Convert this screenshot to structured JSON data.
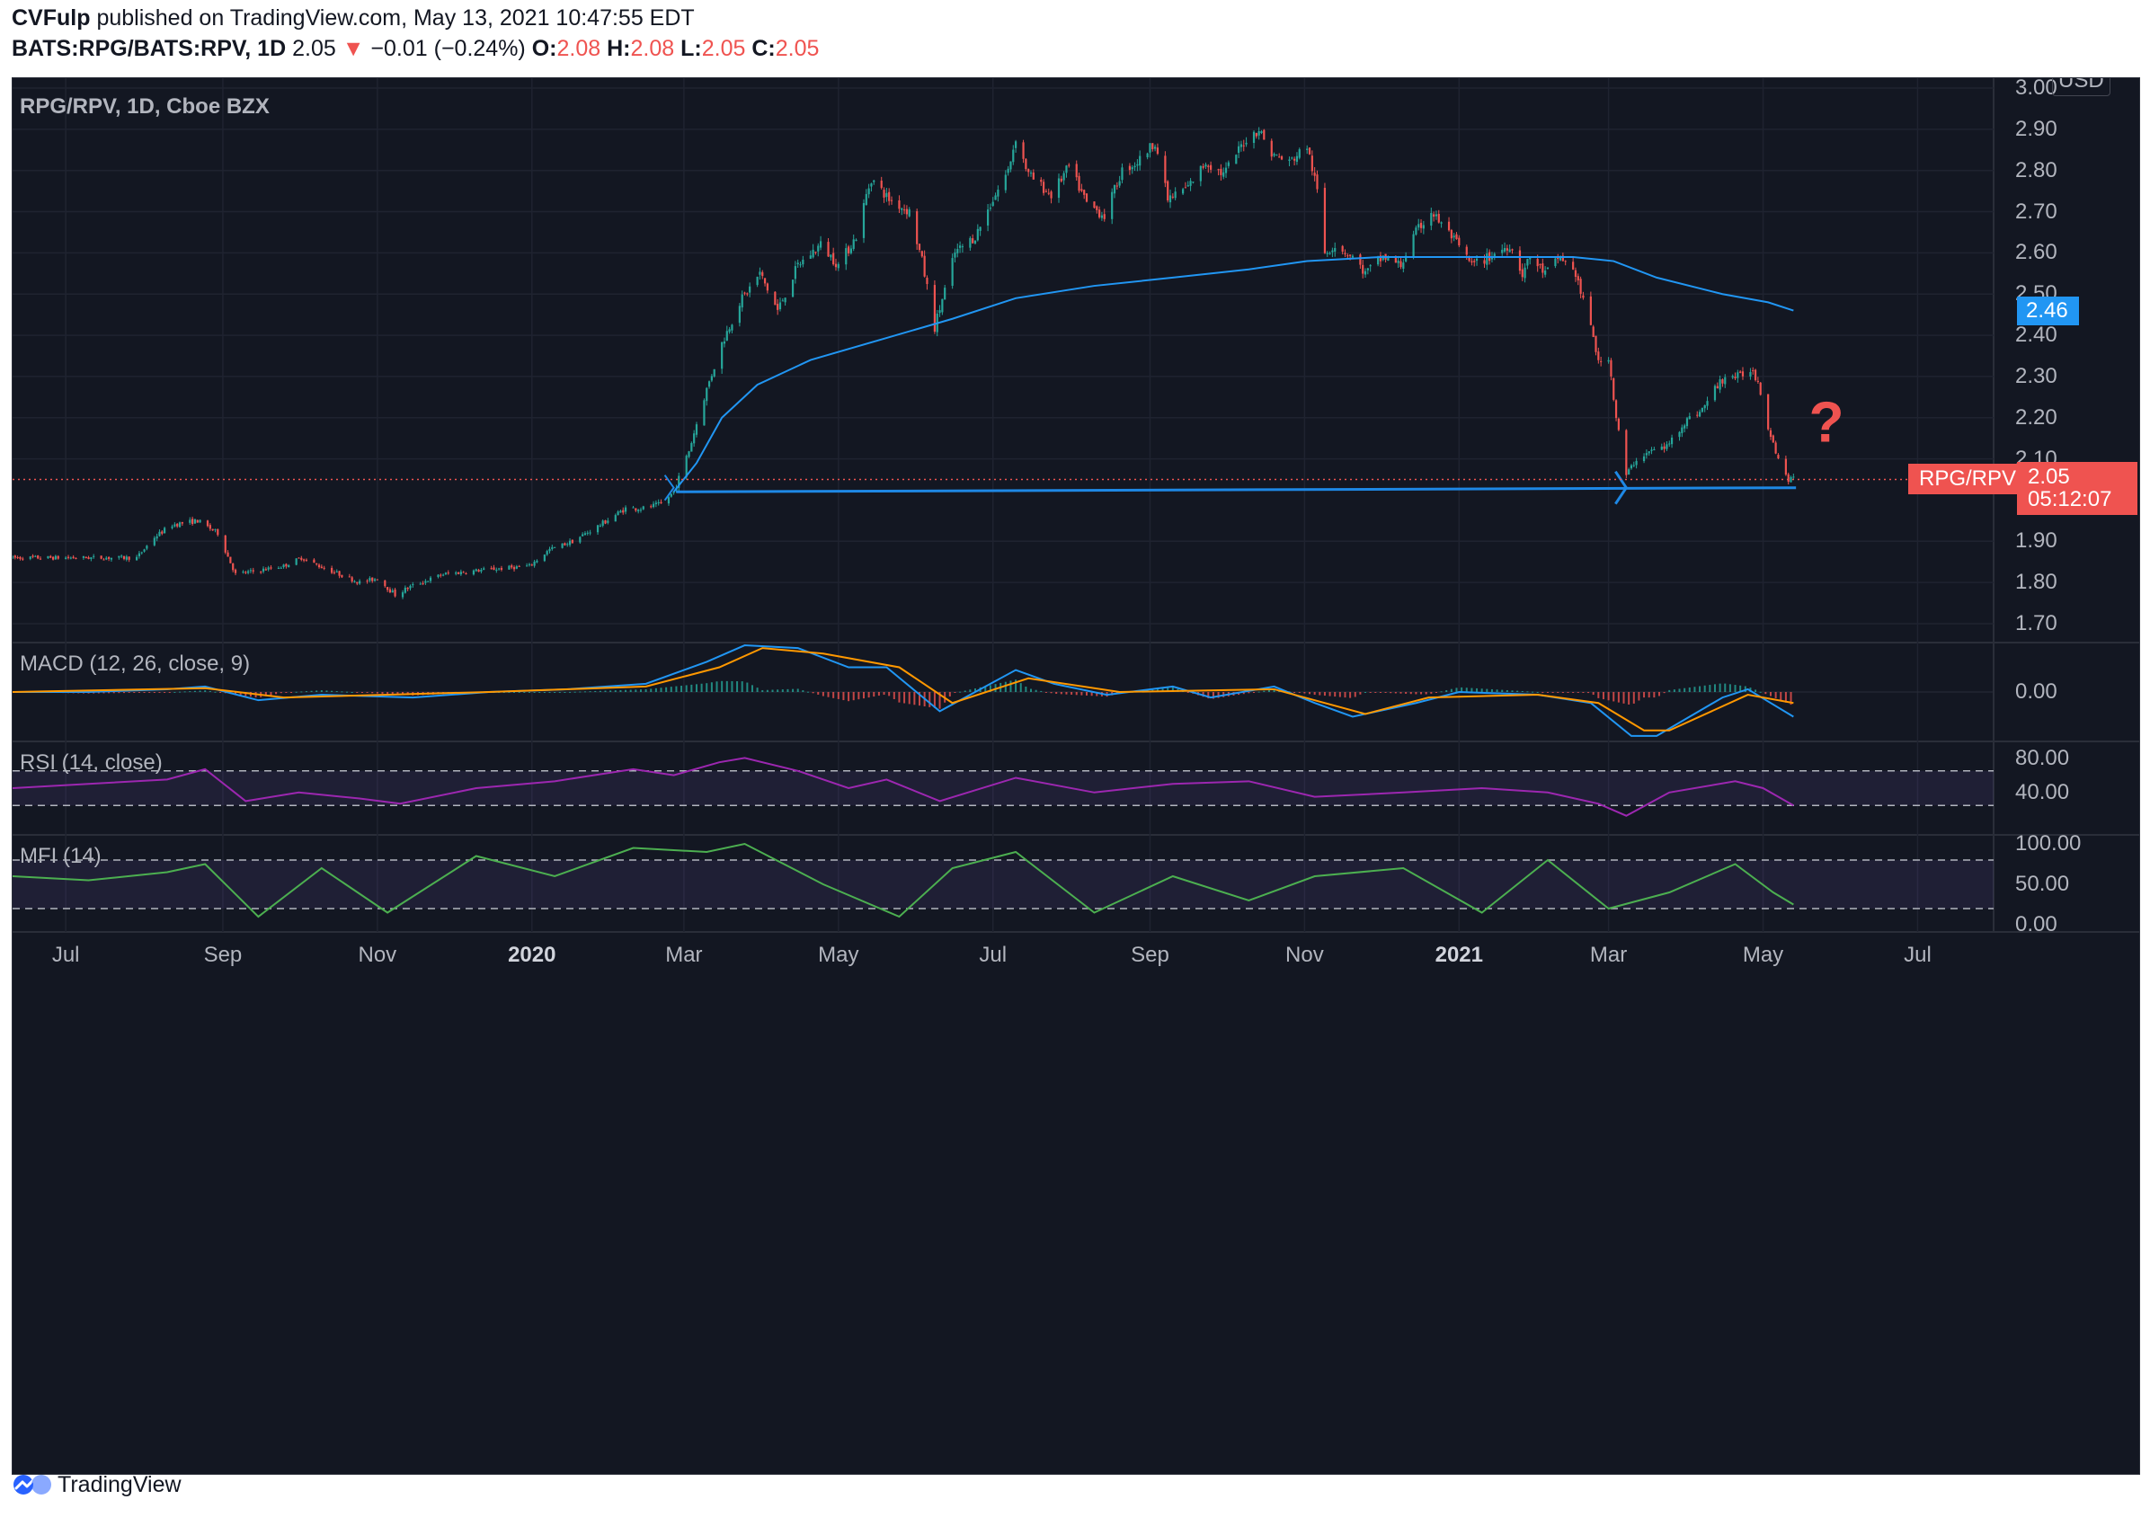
{
  "header": {
    "author": "CVFulp",
    "published_text": " published on TradingView.com, May 13, 2021 10:47:55 EDT",
    "symbol_line": "BATS:RPG/BATS:RPV, 1D",
    "last": "2.05",
    "change_arrow": "▼",
    "change": "−0.01 (−0.24%)",
    "o_label": "O:",
    "o_value": "2.08",
    "h_label": "H:",
    "h_value": "2.08",
    "l_label": "L:",
    "l_value": "2.05",
    "c_label": "C:",
    "c_value": "2.05"
  },
  "pane_titles": {
    "main": "RPG/RPV, 1D, Cboe BZX",
    "macd": "MACD (12, 26, close, 9)",
    "rsi": "RSI (14, close)",
    "mfi": "MFI (14)"
  },
  "currency_badge": "USD",
  "price_axis": [
    "3.00",
    "2.90",
    "2.80",
    "2.70",
    "2.60",
    "2.50",
    "2.40",
    "2.30",
    "2.20",
    "2.10",
    "1.90",
    "1.80",
    "1.70"
  ],
  "price_tags": {
    "ma_value": "2.46",
    "symbol_tag": "RPG/RPV",
    "last_value": "2.05",
    "countdown": "05:12:07"
  },
  "macd_axis": [
    "0.00"
  ],
  "rsi_axis": [
    "80.00",
    "40.00"
  ],
  "mfi_axis": [
    "100.00",
    "50.00",
    "0.00"
  ],
  "time_axis": [
    "Jul",
    "Sep",
    "Nov",
    "2020",
    "Mar",
    "May",
    "Jul",
    "Sep",
    "Nov",
    "2021",
    "Mar",
    "May",
    "Jul"
  ],
  "annotation_mark": "?",
  "footer": {
    "brand": "TradingView"
  },
  "colors": {
    "up": "#26a69a",
    "down": "#ef5350",
    "ma": "#2196f3",
    "trendline": "#1e88e5",
    "macd_line": "#2196f3",
    "signal_line": "#ff9800",
    "rsi": "#9c27b0",
    "mfi": "#4caf50",
    "background": "#131722"
  },
  "chart_data": [
    {
      "type": "candlestick",
      "title": "RPG/RPV, 1D, Cboe BZX",
      "ylim": [
        1.65,
        3.02
      ],
      "x_range": [
        "2019-06-10",
        "2021-07-31"
      ],
      "anchors": [
        [
          "2019-06-10",
          1.86
        ],
        [
          "2019-06-28",
          1.86
        ],
        [
          "2019-07-12",
          1.86
        ],
        [
          "2019-07-29",
          1.86
        ],
        [
          "2019-08-05",
          1.91
        ],
        [
          "2019-08-12",
          1.94
        ],
        [
          "2019-08-22",
          1.95
        ],
        [
          "2019-08-30",
          1.92
        ],
        [
          "2019-09-06",
          1.82
        ],
        [
          "2019-09-16",
          1.83
        ],
        [
          "2019-09-25",
          1.84
        ],
        [
          "2019-10-02",
          1.86
        ],
        [
          "2019-10-09",
          1.84
        ],
        [
          "2019-10-17",
          1.82
        ],
        [
          "2019-10-25",
          1.8
        ],
        [
          "2019-11-01",
          1.81
        ],
        [
          "2019-11-08",
          1.77
        ],
        [
          "2019-11-14",
          1.79
        ],
        [
          "2019-11-27",
          1.82
        ],
        [
          "2019-12-12",
          1.83
        ],
        [
          "2019-12-31",
          1.84
        ],
        [
          "2020-01-08",
          1.88
        ],
        [
          "2020-01-17",
          1.9
        ],
        [
          "2020-01-28",
          1.94
        ],
        [
          "2020-02-07",
          1.98
        ],
        [
          "2020-02-14",
          1.98
        ],
        [
          "2020-02-21",
          1.99
        ],
        [
          "2020-02-26",
          2.02
        ],
        [
          "2020-03-03",
          2.12
        ],
        [
          "2020-03-09",
          2.25
        ],
        [
          "2020-03-16",
          2.38
        ],
        [
          "2020-03-23",
          2.48
        ],
        [
          "2020-03-31",
          2.55
        ],
        [
          "2020-04-07",
          2.46
        ],
        [
          "2020-04-15",
          2.57
        ],
        [
          "2020-04-24",
          2.62
        ],
        [
          "2020-05-01",
          2.57
        ],
        [
          "2020-05-08",
          2.64
        ],
        [
          "2020-05-12",
          2.74
        ],
        [
          "2020-05-14",
          2.78
        ],
        [
          "2020-05-21",
          2.73
        ],
        [
          "2020-05-29",
          2.7
        ],
        [
          "2020-06-03",
          2.58
        ],
        [
          "2020-06-08",
          2.42
        ],
        [
          "2020-06-16",
          2.6
        ],
        [
          "2020-06-24",
          2.64
        ],
        [
          "2020-07-01",
          2.73
        ],
        [
          "2020-07-07",
          2.8
        ],
        [
          "2020-07-10",
          2.88
        ],
        [
          "2020-07-15",
          2.79
        ],
        [
          "2020-07-24",
          2.74
        ],
        [
          "2020-07-31",
          2.81
        ],
        [
          "2020-08-07",
          2.72
        ],
        [
          "2020-08-14",
          2.69
        ],
        [
          "2020-08-21",
          2.8
        ],
        [
          "2020-08-27",
          2.82
        ],
        [
          "2020-09-03",
          2.87
        ],
        [
          "2020-09-08",
          2.73
        ],
        [
          "2020-09-16",
          2.76
        ],
        [
          "2020-09-23",
          2.82
        ],
        [
          "2020-09-30",
          2.79
        ],
        [
          "2020-10-08",
          2.87
        ],
        [
          "2020-10-14",
          2.9
        ],
        [
          "2020-10-19",
          2.84
        ],
        [
          "2020-10-26",
          2.82
        ],
        [
          "2020-11-02",
          2.86
        ],
        [
          "2020-11-06",
          2.75
        ],
        [
          "2020-11-09",
          2.6
        ],
        [
          "2020-11-13",
          2.62
        ],
        [
          "2020-11-20",
          2.59
        ],
        [
          "2020-11-25",
          2.55
        ],
        [
          "2020-12-02",
          2.59
        ],
        [
          "2020-12-09",
          2.57
        ],
        [
          "2020-12-15",
          2.65
        ],
        [
          "2020-12-21",
          2.7
        ],
        [
          "2020-12-29",
          2.64
        ],
        [
          "2021-01-06",
          2.57
        ],
        [
          "2021-01-13",
          2.59
        ],
        [
          "2021-01-21",
          2.62
        ],
        [
          "2021-01-26",
          2.55
        ],
        [
          "2021-01-29",
          2.59
        ],
        [
          "2021-02-04",
          2.55
        ],
        [
          "2021-02-10",
          2.59
        ],
        [
          "2021-02-16",
          2.55
        ],
        [
          "2021-02-19",
          2.48
        ],
        [
          "2021-02-23",
          2.4
        ],
        [
          "2021-02-25",
          2.33
        ],
        [
          "2021-03-01",
          2.35
        ],
        [
          "2021-03-04",
          2.2
        ],
        [
          "2021-03-08",
          2.06
        ],
        [
          "2021-03-12",
          2.1
        ],
        [
          "2021-03-18",
          2.12
        ],
        [
          "2021-03-24",
          2.13
        ],
        [
          "2021-03-31",
          2.19
        ],
        [
          "2021-04-07",
          2.22
        ],
        [
          "2021-04-12",
          2.27
        ],
        [
          "2021-04-16",
          2.3
        ],
        [
          "2021-04-22",
          2.3
        ],
        [
          "2021-04-26",
          2.32
        ],
        [
          "2021-04-29",
          2.29
        ],
        [
          "2021-05-03",
          2.18
        ],
        [
          "2021-05-07",
          2.1
        ],
        [
          "2021-05-11",
          2.05
        ],
        [
          "2021-05-13",
          2.05
        ]
      ],
      "last_close": 2.05,
      "moving_average": {
        "value_label": "2.46",
        "points": [
          [
            "2020-02-26",
            2.02
          ],
          [
            "2020-03-06",
            2.09
          ],
          [
            "2020-03-16",
            2.2
          ],
          [
            "2020-03-30",
            2.28
          ],
          [
            "2020-04-20",
            2.34
          ],
          [
            "2020-05-18",
            2.39
          ],
          [
            "2020-06-15",
            2.44
          ],
          [
            "2020-07-10",
            2.49
          ],
          [
            "2020-08-10",
            2.52
          ],
          [
            "2020-09-10",
            2.54
          ],
          [
            "2020-10-10",
            2.56
          ],
          [
            "2020-11-02",
            2.58
          ],
          [
            "2020-12-01",
            2.59
          ],
          [
            "2021-01-04",
            2.59
          ],
          [
            "2021-02-15",
            2.59
          ],
          [
            "2021-03-03",
            2.58
          ],
          [
            "2021-03-20",
            2.54
          ],
          [
            "2021-04-15",
            2.5
          ],
          [
            "2021-05-03",
            2.48
          ],
          [
            "2021-05-13",
            2.46
          ]
        ]
      },
      "trendline": {
        "from": [
          "2020-02-27",
          2.02
        ],
        "to": [
          "2021-05-14",
          2.03
        ]
      }
    },
    {
      "type": "line",
      "title": "MACD (12, 26, close, 9)",
      "ylim": [
        -0.09,
        0.09
      ],
      "series": [
        {
          "role": "macd",
          "points": [
            [
              "2019-06-10",
              0.0
            ],
            [
              "2019-07-10",
              0.0
            ],
            [
              "2019-08-10",
              0.005
            ],
            [
              "2019-08-25",
              0.01
            ],
            [
              "2019-09-15",
              -0.015
            ],
            [
              "2019-10-10",
              -0.005
            ],
            [
              "2019-11-15",
              -0.01
            ],
            [
              "2019-12-15",
              0.0
            ],
            [
              "2020-01-15",
              0.005
            ],
            [
              "2020-02-15",
              0.015
            ],
            [
              "2020-03-10",
              0.055
            ],
            [
              "2020-03-25",
              0.085
            ],
            [
              "2020-04-15",
              0.08
            ],
            [
              "2020-05-05",
              0.045
            ],
            [
              "2020-05-20",
              0.045
            ],
            [
              "2020-06-10",
              -0.035
            ],
            [
              "2020-07-10",
              0.04
            ],
            [
              "2020-07-25",
              0.015
            ],
            [
              "2020-08-15",
              -0.005
            ],
            [
              "2020-09-10",
              0.01
            ],
            [
              "2020-09-25",
              -0.01
            ],
            [
              "2020-10-20",
              0.01
            ],
            [
              "2020-11-05",
              -0.02
            ],
            [
              "2020-11-20",
              -0.045
            ],
            [
              "2020-12-15",
              -0.02
            ],
            [
              "2021-01-01",
              0.0
            ],
            [
              "2021-02-01",
              -0.005
            ],
            [
              "2021-02-22",
              -0.02
            ],
            [
              "2021-03-10",
              -0.08
            ],
            [
              "2021-03-20",
              -0.08
            ],
            [
              "2021-04-15",
              -0.01
            ],
            [
              "2021-04-25",
              0.005
            ],
            [
              "2021-05-13",
              -0.045
            ]
          ]
        },
        {
          "role": "signal",
          "points": [
            [
              "2019-06-10",
              0.0
            ],
            [
              "2019-08-25",
              0.007
            ],
            [
              "2019-09-25",
              -0.01
            ],
            [
              "2019-12-15",
              0.0
            ],
            [
              "2020-02-15",
              0.01
            ],
            [
              "2020-03-15",
              0.045
            ],
            [
              "2020-04-01",
              0.08
            ],
            [
              "2020-04-25",
              0.07
            ],
            [
              "2020-05-25",
              0.045
            ],
            [
              "2020-06-15",
              -0.02
            ],
            [
              "2020-07-15",
              0.025
            ],
            [
              "2020-08-20",
              0.0
            ],
            [
              "2020-10-20",
              0.005
            ],
            [
              "2020-11-25",
              -0.04
            ],
            [
              "2020-12-20",
              -0.01
            ],
            [
              "2021-02-01",
              -0.005
            ],
            [
              "2021-02-25",
              -0.02
            ],
            [
              "2021-03-15",
              -0.07
            ],
            [
              "2021-03-25",
              -0.07
            ],
            [
              "2021-04-25",
              -0.005
            ],
            [
              "2021-05-13",
              -0.02
            ]
          ]
        }
      ]
    },
    {
      "type": "line",
      "title": "RSI (14, close)",
      "ylim": [
        0,
        100
      ],
      "bands": [
        70,
        30
      ],
      "points": [
        [
          "2019-06-10",
          50
        ],
        [
          "2019-07-10",
          55
        ],
        [
          "2019-08-10",
          60
        ],
        [
          "2019-08-25",
          72
        ],
        [
          "2019-09-10",
          35
        ],
        [
          "2019-10-01",
          45
        ],
        [
          "2019-10-25",
          38
        ],
        [
          "2019-11-10",
          32
        ],
        [
          "2019-12-10",
          50
        ],
        [
          "2020-01-10",
          58
        ],
        [
          "2020-02-10",
          72
        ],
        [
          "2020-02-26",
          65
        ],
        [
          "2020-03-15",
          80
        ],
        [
          "2020-03-25",
          85
        ],
        [
          "2020-04-15",
          70
        ],
        [
          "2020-05-05",
          50
        ],
        [
          "2020-05-20",
          60
        ],
        [
          "2020-06-10",
          35
        ],
        [
          "2020-07-10",
          62
        ],
        [
          "2020-08-10",
          45
        ],
        [
          "2020-09-10",
          55
        ],
        [
          "2020-10-10",
          58
        ],
        [
          "2020-11-05",
          40
        ],
        [
          "2020-12-10",
          45
        ],
        [
          "2021-01-10",
          50
        ],
        [
          "2021-02-05",
          45
        ],
        [
          "2021-02-25",
          32
        ],
        [
          "2021-03-08",
          18
        ],
        [
          "2021-03-25",
          45
        ],
        [
          "2021-04-20",
          58
        ],
        [
          "2021-05-01",
          50
        ],
        [
          "2021-05-13",
          30
        ]
      ]
    },
    {
      "type": "line",
      "title": "MFI (14)",
      "ylim": [
        0,
        100
      ],
      "bands": [
        80,
        20
      ],
      "points": [
        [
          "2019-06-10",
          60
        ],
        [
          "2019-07-10",
          55
        ],
        [
          "2019-08-10",
          65
        ],
        [
          "2019-08-25",
          75
        ],
        [
          "2019-09-15",
          10
        ],
        [
          "2019-10-10",
          70
        ],
        [
          "2019-11-05",
          15
        ],
        [
          "2019-12-10",
          85
        ],
        [
          "2020-01-10",
          60
        ],
        [
          "2020-02-10",
          95
        ],
        [
          "2020-03-10",
          90
        ],
        [
          "2020-03-25",
          100
        ],
        [
          "2020-04-25",
          50
        ],
        [
          "2020-05-25",
          10
        ],
        [
          "2020-06-15",
          70
        ],
        [
          "2020-07-10",
          90
        ],
        [
          "2020-08-10",
          15
        ],
        [
          "2020-09-10",
          60
        ],
        [
          "2020-10-10",
          30
        ],
        [
          "2020-11-05",
          60
        ],
        [
          "2020-12-10",
          70
        ],
        [
          "2021-01-10",
          15
        ],
        [
          "2021-02-05",
          80
        ],
        [
          "2021-03-01",
          20
        ],
        [
          "2021-03-25",
          40
        ],
        [
          "2021-04-20",
          75
        ],
        [
          "2021-05-05",
          40
        ],
        [
          "2021-05-13",
          25
        ]
      ]
    }
  ]
}
